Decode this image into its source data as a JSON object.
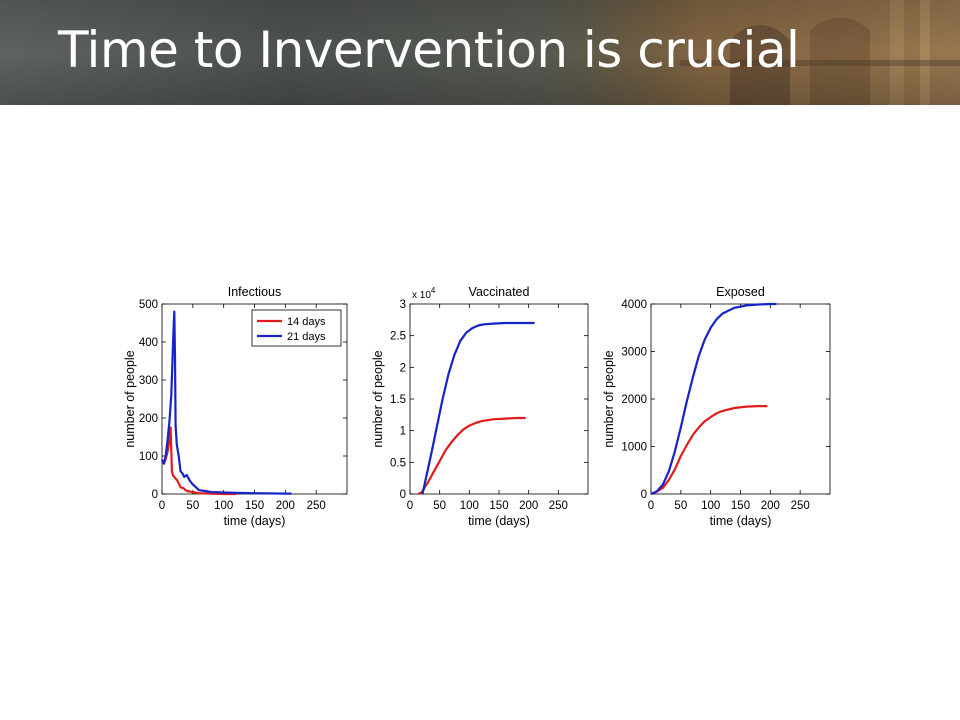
{
  "slide": {
    "title": "Time to Invervention is crucial"
  },
  "colors": {
    "series_14": "#e01c1c",
    "series_21": "#1424c8"
  },
  "chart_data": [
    {
      "type": "line",
      "title": "Infectious",
      "xlabel": "time (days)",
      "ylabel": "number of people",
      "xlim": [
        0,
        300
      ],
      "ylim": [
        0,
        500
      ],
      "xticks": [
        0,
        50,
        100,
        150,
        200,
        250
      ],
      "yticks": [
        0,
        100,
        200,
        300,
        400,
        500
      ],
      "legend": {
        "placement": "top-right",
        "entries": [
          "14 days",
          "21 days"
        ]
      },
      "series": [
        {
          "name": "14 days",
          "color": "#e01c1c",
          "x": [
            0,
            3,
            6,
            9,
            12,
            14,
            16,
            18,
            20,
            25,
            30,
            35,
            40,
            50,
            60,
            80,
            100,
            120
          ],
          "y": [
            85,
            80,
            92,
            110,
            140,
            175,
            60,
            48,
            45,
            35,
            18,
            15,
            8,
            5,
            2,
            1,
            0,
            0
          ]
        },
        {
          "name": "21 days",
          "color": "#1424c8",
          "x": [
            0,
            3,
            6,
            9,
            12,
            15,
            18,
            20,
            21,
            22,
            24,
            27,
            30,
            33,
            36,
            40,
            45,
            50,
            55,
            60,
            70,
            80,
            100,
            120,
            150,
            200,
            210
          ],
          "y": [
            90,
            80,
            100,
            140,
            190,
            260,
            400,
            480,
            360,
            180,
            130,
            100,
            60,
            55,
            45,
            50,
            35,
            25,
            18,
            10,
            8,
            5,
            4,
            3,
            2,
            1,
            1
          ]
        }
      ]
    },
    {
      "type": "line",
      "title": "Vaccinated",
      "xlabel": "time (days)",
      "ylabel": "number of people",
      "axis_multiplier": "x 10",
      "axis_multiplier_exp": "4",
      "xlim": [
        0,
        300
      ],
      "ylim": [
        0,
        3
      ],
      "xticks": [
        0,
        50,
        100,
        150,
        200,
        250
      ],
      "yticks": [
        "0",
        "0.5",
        "1",
        "1.5",
        "2",
        "2.5",
        "3"
      ],
      "series": [
        {
          "name": "14 days",
          "color": "#e01c1c",
          "x": [
            14,
            20,
            30,
            40,
            50,
            60,
            70,
            80,
            90,
            100,
            110,
            120,
            140,
            160,
            180,
            195
          ],
          "y": [
            0,
            0.03,
            0.18,
            0.35,
            0.52,
            0.69,
            0.82,
            0.93,
            1.02,
            1.08,
            1.12,
            1.15,
            1.18,
            1.19,
            1.2,
            1.2
          ]
        },
        {
          "name": "21 days",
          "color": "#1424c8",
          "x": [
            21,
            28,
            35,
            45,
            55,
            65,
            75,
            85,
            95,
            105,
            115,
            125,
            140,
            160,
            180,
            200,
            210
          ],
          "y": [
            0,
            0.3,
            0.6,
            1.05,
            1.5,
            1.9,
            2.2,
            2.42,
            2.55,
            2.62,
            2.66,
            2.68,
            2.69,
            2.7,
            2.7,
            2.7,
            2.7
          ]
        }
      ]
    },
    {
      "type": "line",
      "title": "Exposed",
      "xlabel": "time (days)",
      "ylabel": "number of people",
      "xlim": [
        0,
        300
      ],
      "ylim": [
        0,
        4000
      ],
      "xticks": [
        0,
        50,
        100,
        150,
        200,
        250
      ],
      "yticks": [
        0,
        1000,
        2000,
        3000,
        4000
      ],
      "series": [
        {
          "name": "14 days",
          "color": "#e01c1c",
          "x": [
            0,
            10,
            20,
            30,
            40,
            50,
            60,
            70,
            80,
            90,
            100,
            110,
            120,
            140,
            160,
            180,
            195
          ],
          "y": [
            0,
            50,
            130,
            300,
            520,
            800,
            1030,
            1240,
            1400,
            1530,
            1620,
            1700,
            1750,
            1810,
            1840,
            1850,
            1850
          ]
        },
        {
          "name": "21 days",
          "color": "#1424c8",
          "x": [
            0,
            10,
            20,
            30,
            40,
            50,
            60,
            70,
            80,
            90,
            100,
            110,
            120,
            140,
            160,
            180,
            200,
            210
          ],
          "y": [
            0,
            60,
            200,
            480,
            900,
            1400,
            1950,
            2450,
            2900,
            3250,
            3500,
            3680,
            3800,
            3920,
            3970,
            3990,
            4000,
            4000
          ]
        }
      ]
    }
  ]
}
